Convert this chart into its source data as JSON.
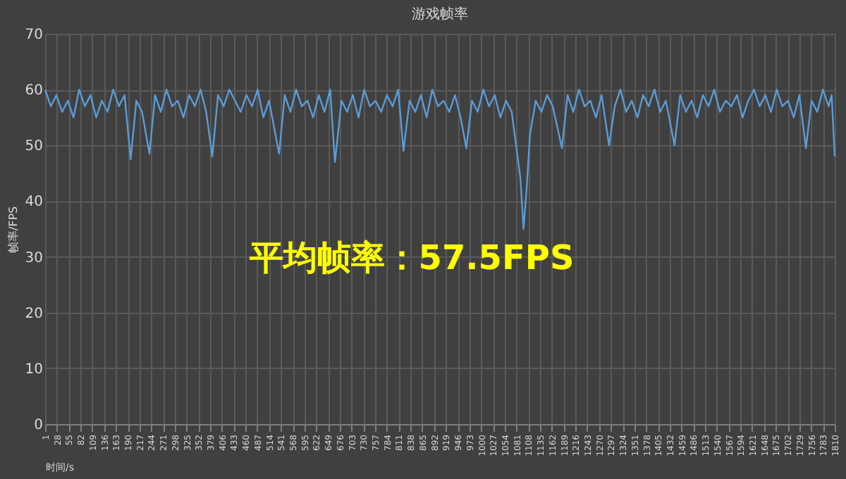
{
  "chart_data": {
    "type": "line",
    "title": "游戏帧率",
    "xlabel": "时间/s",
    "ylabel": "帧率/FPS",
    "annotations": [
      "平均帧率：57.5FPS"
    ],
    "x": [
      1,
      14,
      27,
      40,
      53,
      66,
      79,
      92,
      105,
      118,
      131,
      144,
      157,
      170,
      183,
      197,
      210,
      223,
      240,
      253,
      266,
      279,
      292,
      305,
      318,
      331,
      344,
      357,
      370,
      384,
      397,
      410,
      423,
      436,
      449,
      462,
      475,
      488,
      501,
      514,
      537,
      550,
      563,
      576,
      589,
      602,
      615,
      628,
      641,
      654,
      665,
      680,
      693,
      706,
      719,
      732,
      745,
      758,
      771,
      784,
      797,
      810,
      822,
      836,
      849,
      862,
      875,
      888,
      901,
      914,
      927,
      940,
      953,
      966,
      979,
      992,
      1005,
      1018,
      1031,
      1044,
      1057,
      1070,
      1080,
      1090,
      1097,
      1104,
      1112,
      1125,
      1138,
      1151,
      1164,
      1185,
      1198,
      1211,
      1224,
      1237,
      1250,
      1263,
      1276,
      1293,
      1306,
      1319,
      1332,
      1345,
      1358,
      1371,
      1384,
      1397,
      1410,
      1423,
      1443,
      1456,
      1469,
      1482,
      1495,
      1508,
      1521,
      1534,
      1547,
      1560,
      1573,
      1586,
      1599,
      1612,
      1625,
      1638,
      1651,
      1664,
      1677,
      1690,
      1703,
      1716,
      1729,
      1744,
      1757,
      1770,
      1783,
      1796,
      1803,
      1810
    ],
    "series": [
      {
        "color": "#5b9bd5",
        "values": [
          60,
          57,
          59,
          56,
          58,
          55,
          60,
          57,
          59,
          55,
          58,
          56,
          60,
          57,
          59,
          47.5,
          58,
          56,
          48.5,
          59,
          56,
          60,
          57,
          58,
          55,
          59,
          57,
          60,
          56,
          48,
          59,
          57,
          60,
          58,
          56,
          59,
          57,
          60,
          55,
          58,
          48.5,
          59,
          56,
          60,
          57,
          58,
          55,
          59,
          56,
          60,
          47,
          58,
          56,
          59,
          55,
          60,
          57,
          58,
          56,
          59,
          57,
          60,
          49,
          58,
          56,
          59,
          55,
          60,
          57,
          58,
          56,
          59,
          55,
          49.5,
          58,
          56,
          60,
          57,
          59,
          55,
          58,
          56,
          50,
          44,
          35,
          42,
          52,
          58,
          56,
          59,
          57,
          49.5,
          59,
          56,
          60,
          57,
          58,
          55,
          59,
          50,
          57,
          60,
          56,
          58,
          55,
          59,
          57,
          60,
          56,
          58,
          50,
          59,
          56,
          58,
          55,
          59,
          57,
          60,
          56,
          58,
          57,
          59,
          55,
          58,
          60,
          57,
          59,
          56,
          60,
          57,
          58,
          55,
          59,
          49.5,
          58,
          56,
          60,
          57,
          59,
          48
        ]
      }
    ],
    "xlim": [
      1,
      1810
    ],
    "xticks": [
      1,
      28,
      55,
      82,
      109,
      136,
      163,
      190,
      217,
      244,
      271,
      298,
      325,
      352,
      379,
      406,
      433,
      460,
      487,
      514,
      541,
      568,
      595,
      622,
      649,
      676,
      703,
      730,
      757,
      784,
      811,
      838,
      865,
      892,
      919,
      946,
      973,
      1000,
      1027,
      1054,
      1081,
      1108,
      1135,
      1162,
      1189,
      1216,
      1243,
      1270,
      1297,
      1324,
      1351,
      1378,
      1405,
      1432,
      1459,
      1486,
      1513,
      1540,
      1567,
      1594,
      1621,
      1648,
      1675,
      1702,
      1729,
      1756,
      1783,
      1810
    ],
    "ylim": [
      0,
      70
    ],
    "yticks": [
      0,
      10,
      20,
      30,
      40,
      50,
      60,
      70
    ],
    "grid": true,
    "legend": false,
    "marker": "none",
    "line_style": "solid"
  }
}
